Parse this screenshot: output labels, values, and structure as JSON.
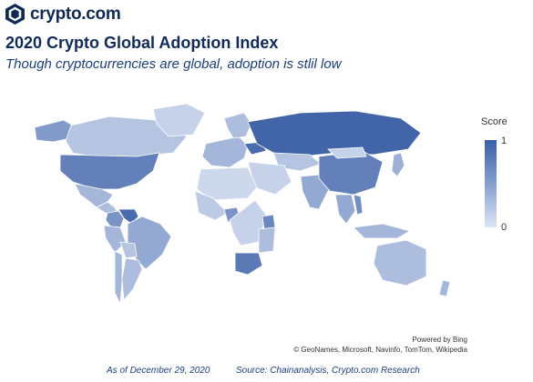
{
  "brand": {
    "name": "crypto.com",
    "logo_icon": "lion-shield-icon"
  },
  "header": {
    "title": "2020 Crypto Global Adoption Index",
    "subtitle": "Though cryptocurrencies are global, adoption is stlil low"
  },
  "legend": {
    "title": "Score",
    "max_label": "1",
    "min_label": "0",
    "color_high": "#3a5ea6",
    "color_low": "#dde6f5"
  },
  "map": {
    "regions": [
      {
        "name": "Alaska",
        "score": 0.55
      },
      {
        "name": "Canada",
        "score": 0.25
      },
      {
        "name": "Greenland",
        "score": 0.15
      },
      {
        "name": "United States",
        "score": 0.75
      },
      {
        "name": "Mexico",
        "score": 0.35
      },
      {
        "name": "Central America",
        "score": 0.3
      },
      {
        "name": "Colombia",
        "score": 0.6
      },
      {
        "name": "Venezuela",
        "score": 0.9
      },
      {
        "name": "Brazil",
        "score": 0.45
      },
      {
        "name": "Peru",
        "score": 0.35
      },
      {
        "name": "Bolivia",
        "score": 0.25
      },
      {
        "name": "Argentina",
        "score": 0.3
      },
      {
        "name": "Chile",
        "score": 0.35
      },
      {
        "name": "Western Europe",
        "score": 0.35
      },
      {
        "name": "Scandinavia",
        "score": 0.3
      },
      {
        "name": "Ukraine",
        "score": 0.9
      },
      {
        "name": "Russia",
        "score": 0.95
      },
      {
        "name": "Kazakhstan",
        "score": 0.25
      },
      {
        "name": "Middle East",
        "score": 0.15
      },
      {
        "name": "North Africa",
        "score": 0.1
      },
      {
        "name": "West Africa",
        "score": 0.2
      },
      {
        "name": "Nigeria",
        "score": 0.6
      },
      {
        "name": "Central Africa",
        "score": 0.15
      },
      {
        "name": "Kenya",
        "score": 0.7
      },
      {
        "name": "East Africa",
        "score": 0.3
      },
      {
        "name": "South Africa",
        "score": 0.8
      },
      {
        "name": "India",
        "score": 0.45
      },
      {
        "name": "China",
        "score": 0.75
      },
      {
        "name": "Mongolia",
        "score": 0.15
      },
      {
        "name": "Southeast Asia",
        "score": 0.45
      },
      {
        "name": "Vietnam",
        "score": 0.65
      },
      {
        "name": "Indonesia",
        "score": 0.35
      },
      {
        "name": "Japan",
        "score": 0.4
      },
      {
        "name": "Australia",
        "score": 0.3
      },
      {
        "name": "New Zealand",
        "score": 0.35
      }
    ]
  },
  "credits": {
    "line1": "Powered by Bing",
    "line2": "© GeoNames, Microsoft, Navinfo, TomTom, Wikipedia"
  },
  "footer": {
    "date": "As of December 29, 2020",
    "source": "Source: Chainanalysis, Crypto.com Research"
  }
}
